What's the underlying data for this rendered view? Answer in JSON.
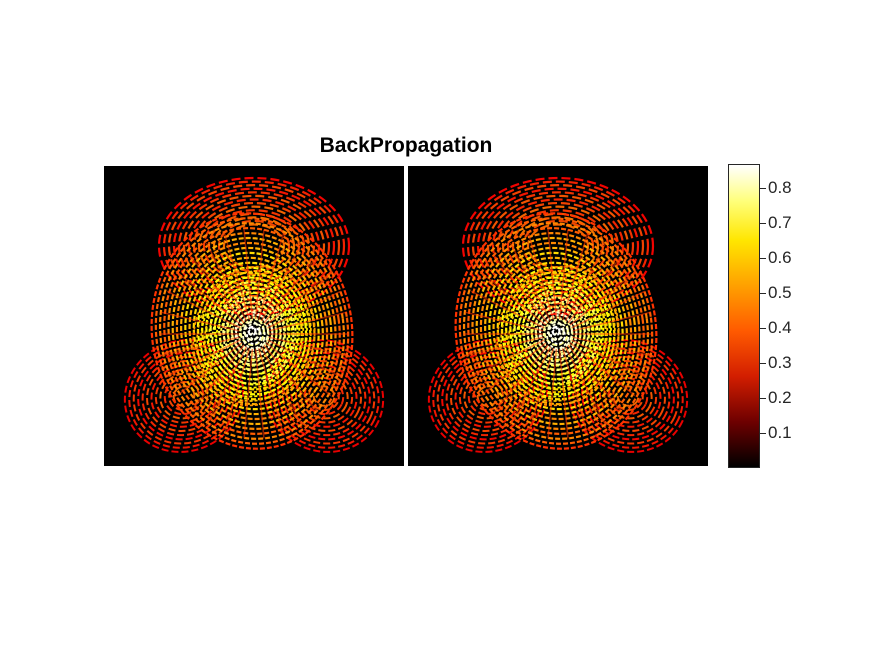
{
  "chart_data": {
    "type": "heatmap",
    "title": "BackPropagation",
    "panels": [
      {
        "name": "",
        "content": "fingerprint heatmap"
      },
      {
        "name": "",
        "content": "fingerprint heatmap"
      }
    ],
    "colormap": "hot",
    "colorbar": {
      "range": [
        0,
        0.87
      ],
      "ticks": [
        0.1,
        0.2,
        0.3,
        0.4,
        0.5,
        0.6,
        0.7,
        0.8
      ],
      "tick_labels": [
        "0.1",
        "0.2",
        "0.3",
        "0.4",
        "0.5",
        "0.6",
        "0.7",
        "0.8"
      ]
    },
    "grid": false
  }
}
